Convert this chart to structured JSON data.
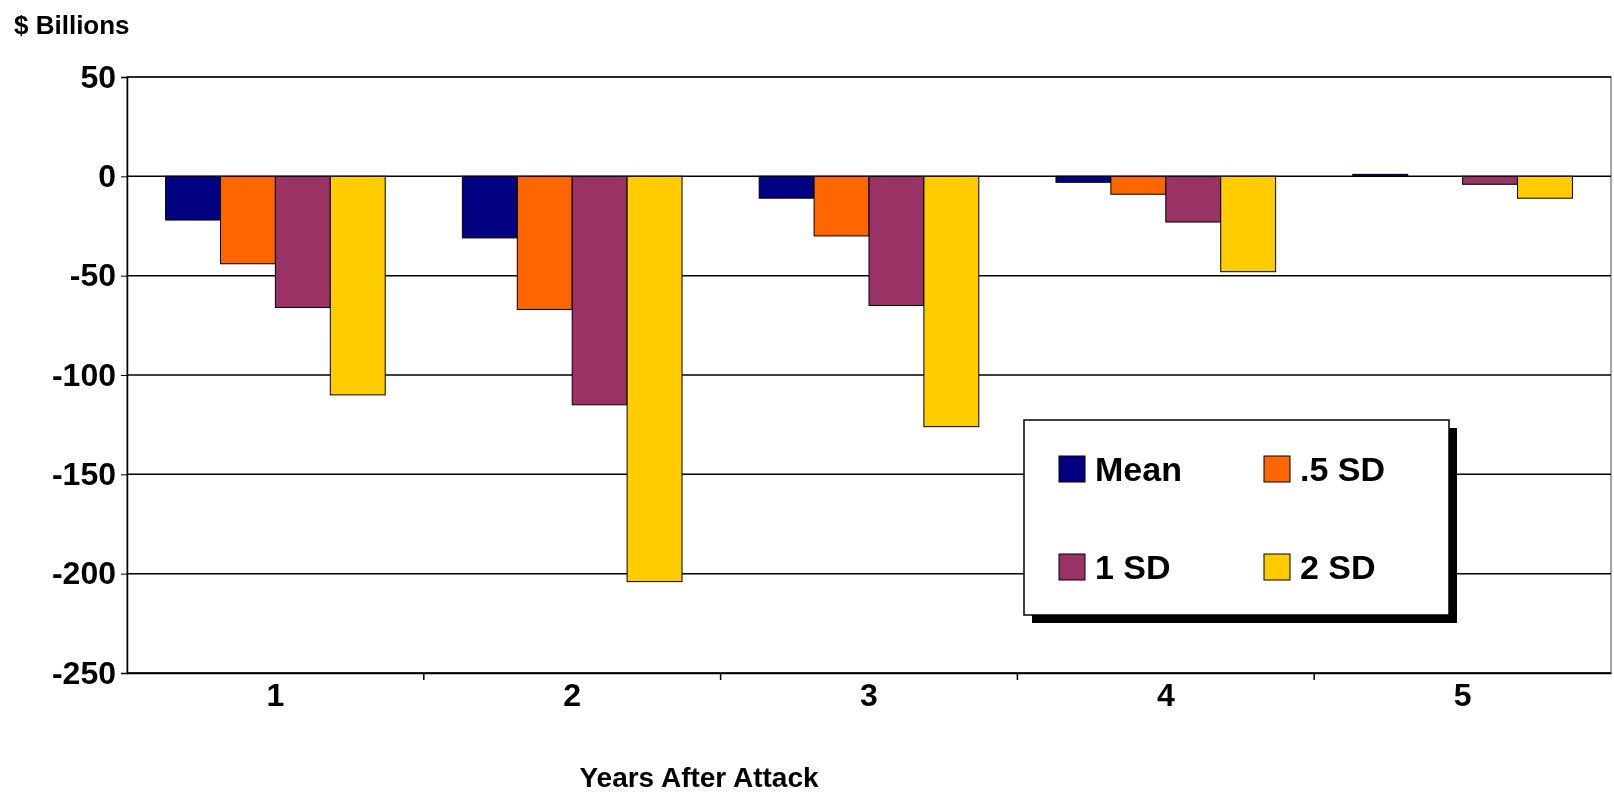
{
  "chart_data": {
    "type": "bar",
    "ylabel": "$ Billions",
    "xlabel": "Years After Attack",
    "categories": [
      "1",
      "2",
      "3",
      "4",
      "5"
    ],
    "series": [
      {
        "name": "Mean",
        "color": "#000080",
        "values": [
          -22,
          -31,
          -11,
          -3,
          1
        ]
      },
      {
        "name": ".5 SD",
        "color": "#ff6600",
        "values": [
          -44,
          -67,
          -30,
          -9,
          0
        ]
      },
      {
        "name": "1 SD",
        "color": "#993366",
        "values": [
          -66,
          -115,
          -65,
          -23,
          -4
        ]
      },
      {
        "name": "2 SD",
        "color": "#ffcc00",
        "values": [
          -110,
          -204,
          -126,
          -48,
          -11
        ]
      }
    ],
    "ylim": [
      -250,
      50
    ],
    "yticks": [
      -250,
      -200,
      -150,
      -100,
      -50,
      0,
      50
    ],
    "grid": "y",
    "legend": "bottom right"
  }
}
